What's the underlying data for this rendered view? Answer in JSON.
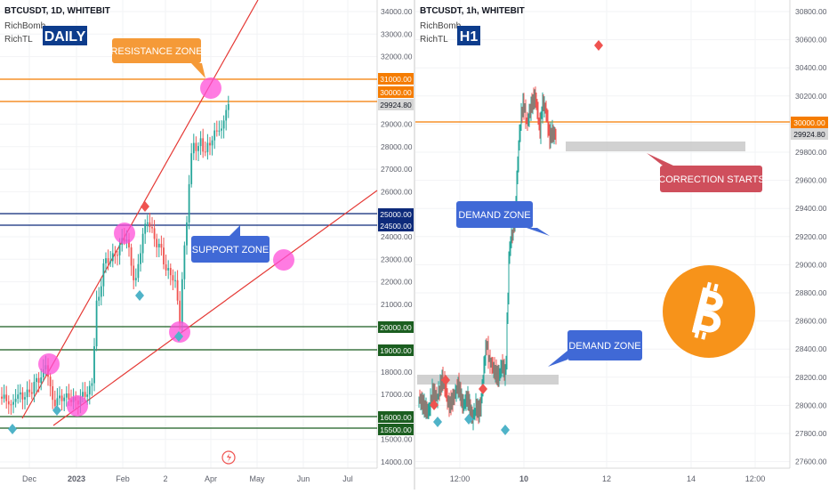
{
  "left": {
    "header": "BTCUSDT, 1D, WHITEBIT",
    "indicators": [
      "RichBomb",
      "RichTL"
    ],
    "badge": "DAILY",
    "price_ticks": [
      "34000.00",
      "33000.00",
      "32000.00",
      "31000.00",
      "30000.00",
      "29000.00",
      "28000.00",
      "27000.00",
      "26000.00",
      "25000.00",
      "24000.00",
      "23000.00",
      "22000.00",
      "21000.00",
      "20000.00",
      "19000.00",
      "18000.00",
      "17000.00",
      "16000.00",
      "15000.00",
      "14000.00"
    ],
    "time_ticks": [
      "Dec",
      "2023",
      "Feb",
      "2",
      "Apr",
      "May",
      "Jun",
      "Jul"
    ],
    "level_labels": {
      "l31000": "31000.00",
      "l30000": "30000.00",
      "last": "29924.80",
      "l25000": "25000.00",
      "l24500": "24500.00",
      "l20000": "20000.00",
      "l19000": "19000.00",
      "l16000": "16000.00",
      "l15500": "15500.00"
    },
    "callouts": {
      "resistance": "RESISTANCE ZONE",
      "support": "SUPPORT ZONE"
    },
    "colors": {
      "orange": "#f57c00",
      "navy": "#0d2a7a",
      "green": "#1b5e20",
      "red": "#e53935",
      "pink": "#ff4fd8",
      "up": "#26a69a",
      "down": "#ef5350",
      "callout_blue": "#4069d6"
    }
  },
  "right": {
    "header": "BTCUSDT, 1h, WHITEBIT",
    "indicators": [
      "RichBomb",
      "RichTL"
    ],
    "badge": "H1",
    "price_ticks": [
      "30800.00",
      "30600.00",
      "30400.00",
      "30200.00",
      "30000.00",
      "29800.00",
      "29600.00",
      "29400.00",
      "29200.00",
      "29000.00",
      "28800.00",
      "28600.00",
      "28400.00",
      "28200.00",
      "28000.00",
      "27800.00",
      "27600.00"
    ],
    "time_ticks": [
      "12:00",
      "10",
      "12",
      "14",
      "12:00"
    ],
    "level_labels": {
      "l30000": "30000.00",
      "last": "29924.80"
    },
    "callouts": {
      "demand_top": "DEMAND ZONE",
      "demand_bottom": "DEMAND ZONE",
      "correction": "CORRECTION STARTS"
    },
    "logo": "bitcoin-logo",
    "colors": {
      "orange": "#f57c00",
      "callout_blue": "#4069d6",
      "callout_red": "#cf4f5c",
      "btc": "#f7931a"
    }
  }
}
